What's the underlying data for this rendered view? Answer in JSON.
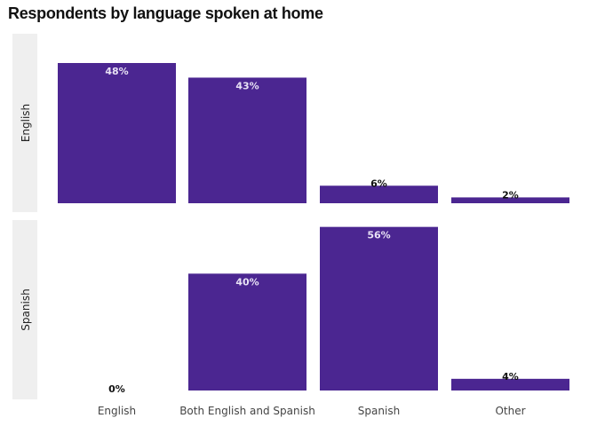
{
  "chart_data": {
    "type": "bar",
    "title": "Respondents by language spoken at home",
    "xlabel": "",
    "ylabel": "",
    "categories": [
      "English",
      "Both English and Spanish",
      "Spanish",
      "Other"
    ],
    "facets": [
      {
        "name": "English",
        "values": [
          48,
          43,
          6,
          2
        ],
        "labels": [
          "48%",
          "43%",
          "6%",
          "2%"
        ]
      },
      {
        "name": "Spanish",
        "values": [
          0,
          40,
          56,
          4
        ],
        "labels": [
          "0%",
          "40%",
          "56%",
          "4%"
        ]
      }
    ],
    "ylim": [
      0,
      48
    ],
    "grid": false,
    "colors": {
      "bar": "#4b2691",
      "strip": "#efefef",
      "label_inside": "#e8e2f5",
      "label_outside": "#111111"
    }
  }
}
